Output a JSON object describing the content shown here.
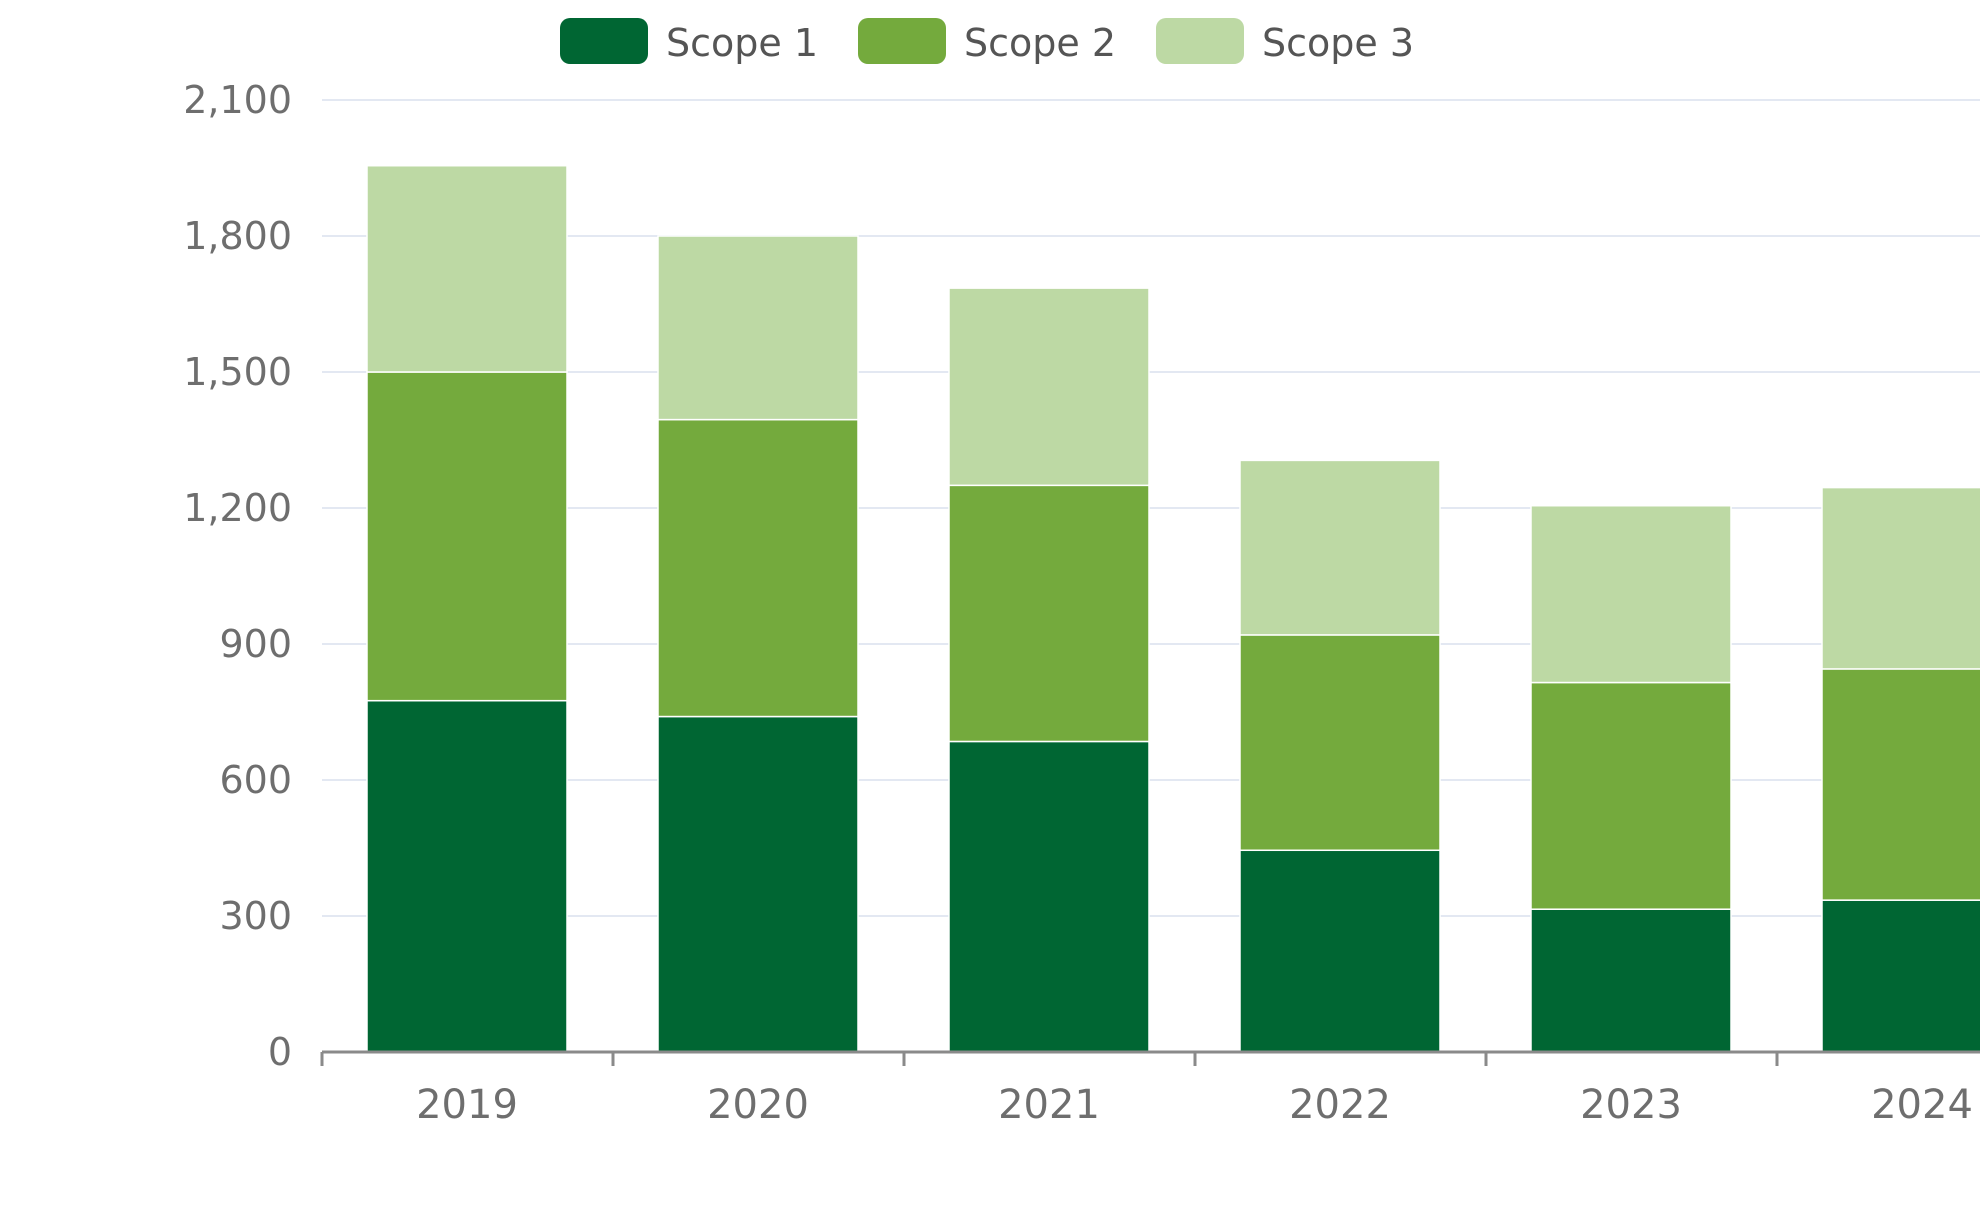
{
  "chart_data": {
    "type": "bar",
    "stacked": true,
    "categories": [
      "2019",
      "2020",
      "2021",
      "2022",
      "2023",
      "2024"
    ],
    "series": [
      {
        "name": "Scope 1",
        "color": "#006633",
        "values": [
          775,
          740,
          685,
          445,
          315,
          335
        ]
      },
      {
        "name": "Scope 2",
        "color": "#74AA3D",
        "values": [
          725,
          655,
          565,
          475,
          500,
          510
        ]
      },
      {
        "name": "Scope 3",
        "color": "#BDD9A4",
        "values": [
          455,
          405,
          435,
          385,
          390,
          400
        ]
      }
    ],
    "yticks": [
      "0",
      "300",
      "600",
      "900",
      "1,200",
      "1,500",
      "1,800",
      "2,100"
    ],
    "ylim": [
      0,
      2100
    ],
    "grid": true,
    "legend_position": "top-center",
    "axis_color": "#8a8a8a",
    "grid_color": "#e3e8f2",
    "label_color": "#6e6e6e"
  }
}
